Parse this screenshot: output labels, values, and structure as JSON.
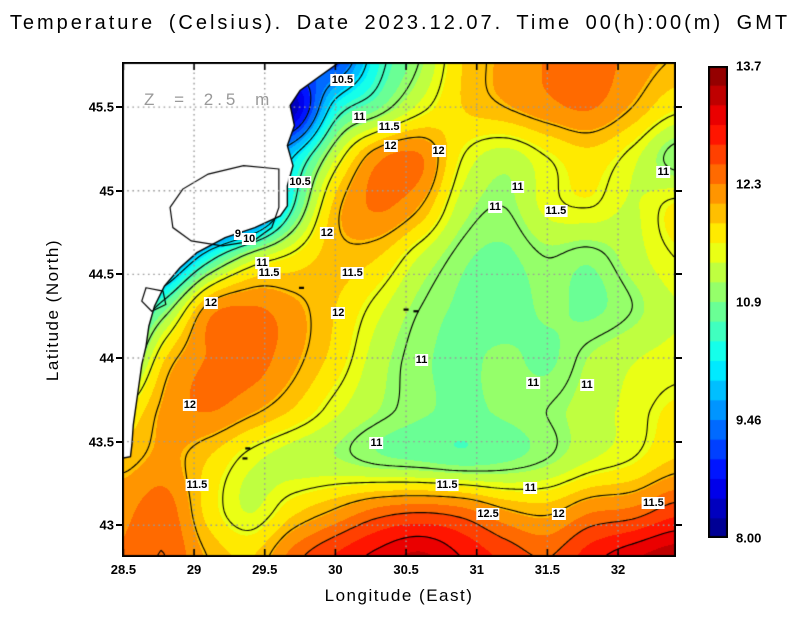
{
  "title": "Temperature (Celsius). Date 2023.12.07. Time 00(h):00(m) GMT",
  "annotation": "Z = 2.5 m",
  "axes": {
    "x": {
      "label": "Longitude (East)",
      "range": [
        28.49,
        32.41
      ],
      "ticks": [
        28.5,
        29,
        29.5,
        30,
        30.5,
        31,
        31.5,
        32
      ],
      "tick_labels": [
        "28.5",
        "29",
        "29.5",
        "30",
        "30.5",
        "31",
        "31.5",
        "32"
      ]
    },
    "y": {
      "label": "Latitude (North)",
      "range": [
        42.81,
        45.77
      ],
      "ticks": [
        43,
        43.5,
        44,
        44.5,
        45,
        45.5
      ],
      "tick_labels": [
        "43",
        "43.5",
        "44",
        "44.5",
        "45",
        "45.5"
      ]
    }
  },
  "colorbar": {
    "min": 8.0,
    "max": 13.7,
    "bands": 24,
    "tick_labels": [
      "13.7",
      "12.3",
      "10.9",
      "9.46",
      "8.00"
    ]
  },
  "colors": {
    "land": "#ffffff",
    "coastline": "#000000",
    "contour": "#000000",
    "gridline": "#9a9a9a",
    "annotation": "#999999",
    "frame": "#000000"
  },
  "chart_data": {
    "type": "heatmap",
    "units": "Celsius",
    "x_lons": [
      28.5,
      28.8,
      29.1,
      29.4,
      29.7,
      30.0,
      30.3,
      30.6,
      30.9,
      31.2,
      31.5,
      31.8,
      32.1,
      32.4
    ],
    "y_lats": [
      45.8,
      45.5,
      45.2,
      44.9,
      44.6,
      44.3,
      44.0,
      43.7,
      43.4,
      43.1,
      42.8
    ],
    "temperature_grid": [
      [
        null,
        null,
        null,
        null,
        9.5,
        9.0,
        10.3,
        11.0,
        11.8,
        12.1,
        12.3,
        12.4,
        12.2,
        12.0
      ],
      [
        null,
        null,
        null,
        null,
        8.3,
        10.2,
        10.8,
        11.4,
        11.8,
        12.0,
        12.2,
        12.3,
        12.0,
        11.6
      ],
      [
        null,
        null,
        null,
        9.0,
        10.0,
        11.3,
        12.2,
        12.3,
        11.5,
        11.2,
        11.5,
        11.7,
        11.4,
        10.9
      ],
      [
        null,
        null,
        null,
        8.7,
        10.5,
        11.9,
        12.3,
        12.0,
        11.2,
        11.0,
        11.4,
        11.5,
        11.3,
        11.6
      ],
      [
        null,
        9.0,
        10.3,
        11.2,
        11.6,
        11.9,
        11.8,
        11.3,
        10.9,
        10.8,
        11.0,
        10.9,
        11.2,
        11.5
      ],
      [
        9.8,
        10.8,
        12.1,
        12.3,
        12.1,
        11.8,
        11.4,
        11.0,
        10.8,
        10.7,
        10.9,
        10.8,
        11.0,
        11.3
      ],
      [
        10.5,
        11.8,
        12.3,
        12.4,
        12.1,
        11.7,
        11.2,
        10.9,
        10.8,
        10.9,
        10.8,
        11.1,
        11.3,
        11.4
      ],
      [
        11.5,
        12.1,
        12.3,
        12.1,
        11.8,
        11.4,
        11.1,
        10.9,
        10.8,
        10.9,
        11.0,
        11.2,
        11.4,
        11.6
      ],
      [
        11.9,
        12.1,
        11.8,
        11.4,
        11.2,
        11.1,
        10.9,
        10.8,
        10.7,
        10.8,
        11.0,
        11.3,
        11.5,
        11.8
      ],
      [
        12.2,
        12.4,
        11.7,
        11.3,
        11.7,
        12.0,
        12.3,
        12.4,
        12.3,
        12.0,
        11.9,
        12.2,
        12.3,
        12.6
      ],
      [
        12.3,
        12.5,
        12.0,
        11.8,
        12.4,
        12.8,
        13.1,
        13.3,
        13.0,
        12.7,
        12.5,
        12.9,
        13.2,
        13.4
      ]
    ],
    "contour_levels": [
      9,
      9.5,
      10,
      10.5,
      11,
      11.5,
      12,
      12.5,
      13
    ],
    "contour_labels": [
      {
        "value": "10.5",
        "lon": 30.05,
        "lat": 45.66
      },
      {
        "value": "11",
        "lon": 30.17,
        "lat": 45.44
      },
      {
        "value": "11.5",
        "lon": 30.38,
        "lat": 45.38
      },
      {
        "value": "12",
        "lon": 30.39,
        "lat": 45.27
      },
      {
        "value": "12",
        "lon": 30.73,
        "lat": 45.24
      },
      {
        "value": "11",
        "lon": 32.32,
        "lat": 45.11
      },
      {
        "value": "11",
        "lon": 31.29,
        "lat": 45.02
      },
      {
        "value": "11",
        "lon": 31.13,
        "lat": 44.9
      },
      {
        "value": "11.5",
        "lon": 31.56,
        "lat": 44.88
      },
      {
        "value": "10.5",
        "lon": 29.75,
        "lat": 45.05
      },
      {
        "value": "9",
        "lon": 29.31,
        "lat": 44.74
      },
      {
        "value": "10",
        "lon": 29.39,
        "lat": 44.71
      },
      {
        "value": "12",
        "lon": 29.94,
        "lat": 44.75
      },
      {
        "value": "11",
        "lon": 29.48,
        "lat": 44.57
      },
      {
        "value": "11.5",
        "lon": 29.53,
        "lat": 44.51
      },
      {
        "value": "11.5",
        "lon": 30.12,
        "lat": 44.51
      },
      {
        "value": "12",
        "lon": 29.12,
        "lat": 44.33
      },
      {
        "value": "12",
        "lon": 30.02,
        "lat": 44.27
      },
      {
        "value": "11",
        "lon": 30.61,
        "lat": 43.99
      },
      {
        "value": "11",
        "lon": 31.4,
        "lat": 43.85
      },
      {
        "value": "11",
        "lon": 31.78,
        "lat": 43.84
      },
      {
        "value": "12",
        "lon": 28.97,
        "lat": 43.72
      },
      {
        "value": "11",
        "lon": 30.29,
        "lat": 43.49
      },
      {
        "value": "11.5",
        "lon": 29.02,
        "lat": 43.24
      },
      {
        "value": "11.5",
        "lon": 30.79,
        "lat": 43.24
      },
      {
        "value": "11",
        "lon": 31.38,
        "lat": 43.22
      },
      {
        "value": "12.5",
        "lon": 31.08,
        "lat": 43.07
      },
      {
        "value": "12",
        "lon": 31.58,
        "lat": 43.07
      },
      {
        "value": "11.5",
        "lon": 32.25,
        "lat": 43.13
      }
    ],
    "land_polygon": [
      [
        30.03,
        45.77
      ],
      [
        29.75,
        45.6
      ],
      [
        29.68,
        45.51
      ],
      [
        29.71,
        45.39
      ],
      [
        29.66,
        45.27
      ],
      [
        29.7,
        45.15
      ],
      [
        29.66,
        45.03
      ],
      [
        29.66,
        44.91
      ],
      [
        29.61,
        44.85
      ],
      [
        29.43,
        44.78
      ],
      [
        29.22,
        44.72
      ],
      [
        29.02,
        44.63
      ],
      [
        28.9,
        44.54
      ],
      [
        28.79,
        44.43
      ],
      [
        28.72,
        44.31
      ],
      [
        28.68,
        44.19
      ],
      [
        28.66,
        44.07
      ],
      [
        28.63,
        43.96
      ],
      [
        28.61,
        43.84
      ],
      [
        28.59,
        43.72
      ],
      [
        28.57,
        43.6
      ],
      [
        28.56,
        43.48
      ],
      [
        28.55,
        43.41
      ],
      [
        28.49,
        43.4
      ],
      [
        28.49,
        45.77
      ]
    ],
    "lakes": [
      [
        [
          29.6,
          45.13
        ],
        [
          29.35,
          45.15
        ],
        [
          29.1,
          45.1
        ],
        [
          28.92,
          45.01
        ],
        [
          28.83,
          44.9
        ],
        [
          28.85,
          44.78
        ],
        [
          28.98,
          44.7
        ],
        [
          29.2,
          44.67
        ],
        [
          29.42,
          44.7
        ],
        [
          29.55,
          44.78
        ],
        [
          29.6,
          44.9
        ]
      ],
      [
        [
          28.66,
          44.42
        ],
        [
          28.78,
          44.4
        ],
        [
          28.8,
          44.32
        ],
        [
          28.7,
          44.28
        ],
        [
          28.63,
          44.34
        ]
      ]
    ],
    "islands": [
      [
        30.57,
        44.28
      ],
      [
        30.5,
        44.29
      ],
      [
        29.38,
        43.46
      ],
      [
        29.36,
        43.4
      ],
      [
        29.76,
        44.42
      ]
    ]
  }
}
